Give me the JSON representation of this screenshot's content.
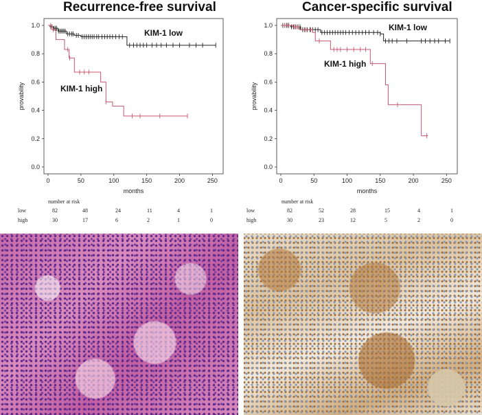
{
  "chart_data": [
    {
      "type": "line",
      "step": true,
      "title": "Recurrence-free survival",
      "xlabel": "months",
      "ylabel": "provability",
      "xlim": [
        0,
        260
      ],
      "ylim": [
        0,
        1.0
      ],
      "xticks": [
        0,
        50,
        100,
        150,
        200,
        250
      ],
      "yticks": [
        0.0,
        0.2,
        0.4,
        0.6,
        0.8,
        1.0
      ],
      "series": [
        {
          "name": "KIM-1 low",
          "color": "#222222",
          "steps": [
            [
              0,
              1.0
            ],
            [
              3,
              0.99
            ],
            [
              8,
              0.98
            ],
            [
              15,
              0.96
            ],
            [
              28,
              0.94
            ],
            [
              40,
              0.93
            ],
            [
              50,
              0.92
            ],
            [
              80,
              0.92
            ],
            [
              120,
              0.86
            ],
            [
              255,
              0.86
            ]
          ],
          "censors": [
            4,
            6,
            9,
            11,
            13,
            16,
            18,
            20,
            22,
            24,
            26,
            30,
            33,
            36,
            38,
            43,
            46,
            52,
            55,
            58,
            61,
            64,
            67,
            70,
            74,
            77,
            82,
            86,
            90,
            94,
            98,
            103,
            108,
            113,
            124,
            130,
            135,
            140,
            145,
            150,
            158,
            165,
            172,
            180,
            190,
            200,
            215,
            225,
            235,
            255
          ]
        },
        {
          "name": "KIM-1 high",
          "color": "#c8566e",
          "steps": [
            [
              0,
              1.0
            ],
            [
              6,
              0.97
            ],
            [
              12,
              0.9
            ],
            [
              25,
              0.83
            ],
            [
              32,
              0.77
            ],
            [
              40,
              0.67
            ],
            [
              80,
              0.6
            ],
            [
              88,
              0.46
            ],
            [
              98,
              0.43
            ],
            [
              115,
              0.36
            ],
            [
              212,
              0.36
            ]
          ],
          "censors": [
            4,
            8,
            30,
            33,
            48,
            55,
            62,
            88,
            128,
            140,
            170,
            212
          ]
        }
      ],
      "annotations": [
        "KIM-1 low",
        "KIM-1 high"
      ],
      "risk_table": {
        "header": "number at risk",
        "rows": [
          {
            "label": "low",
            "values": [
              "82",
              "48",
              "24",
              "11",
              "4",
              "1"
            ]
          },
          {
            "label": "high",
            "values": [
              "30",
              "17",
              "6",
              "2",
              "1",
              "0"
            ]
          }
        ]
      }
    },
    {
      "type": "line",
      "step": true,
      "title": "Cancer-specific survival",
      "xlabel": "months",
      "ylabel": "provability",
      "xlim": [
        0,
        260
      ],
      "ylim": [
        0,
        1.0
      ],
      "xticks": [
        0,
        50,
        100,
        150,
        200,
        250
      ],
      "yticks": [
        0.0,
        0.2,
        0.4,
        0.6,
        0.8,
        1.0
      ],
      "series": [
        {
          "name": "KIM-1 low",
          "color": "#222222",
          "steps": [
            [
              0,
              1.0
            ],
            [
              15,
              0.99
            ],
            [
              30,
              0.97
            ],
            [
              60,
              0.95
            ],
            [
              150,
              0.94
            ],
            [
              155,
              0.89
            ],
            [
              255,
              0.89
            ]
          ],
          "censors": [
            3,
            6,
            9,
            12,
            16,
            19,
            22,
            26,
            29,
            33,
            36,
            40,
            44,
            48,
            52,
            56,
            62,
            66,
            70,
            74,
            78,
            82,
            86,
            90,
            94,
            98,
            103,
            108,
            113,
            118,
            123,
            128,
            133,
            140,
            146,
            150,
            158,
            163,
            168,
            175,
            190,
            212,
            218,
            225,
            232,
            238,
            248,
            255
          ]
        },
        {
          "name": "KIM-1 high",
          "color": "#c8566e",
          "steps": [
            [
              0,
              1.0
            ],
            [
              18,
              0.99
            ],
            [
              28,
              0.97
            ],
            [
              48,
              0.95
            ],
            [
              52,
              0.89
            ],
            [
              75,
              0.83
            ],
            [
              135,
              0.73
            ],
            [
              145,
              0.73
            ],
            [
              158,
              0.58
            ],
            [
              162,
              0.44
            ],
            [
              212,
              0.22
            ],
            [
              222,
              0.22
            ]
          ],
          "censors": [
            6,
            10,
            20,
            24,
            38,
            45,
            58,
            80,
            85,
            90,
            100,
            110,
            120,
            128,
            138,
            176,
            220
          ]
        }
      ],
      "annotations": [
        "KIM-1 low",
        "KIM-1 high"
      ],
      "risk_table": {
        "header": "number at risk",
        "rows": [
          {
            "label": "low",
            "values": [
              "82",
              "52",
              "28",
              "15",
              "4",
              "1"
            ]
          },
          {
            "label": "high",
            "values": [
              "30",
              "23",
              "12",
              "5",
              "2",
              "0"
            ]
          }
        ]
      }
    }
  ]
}
